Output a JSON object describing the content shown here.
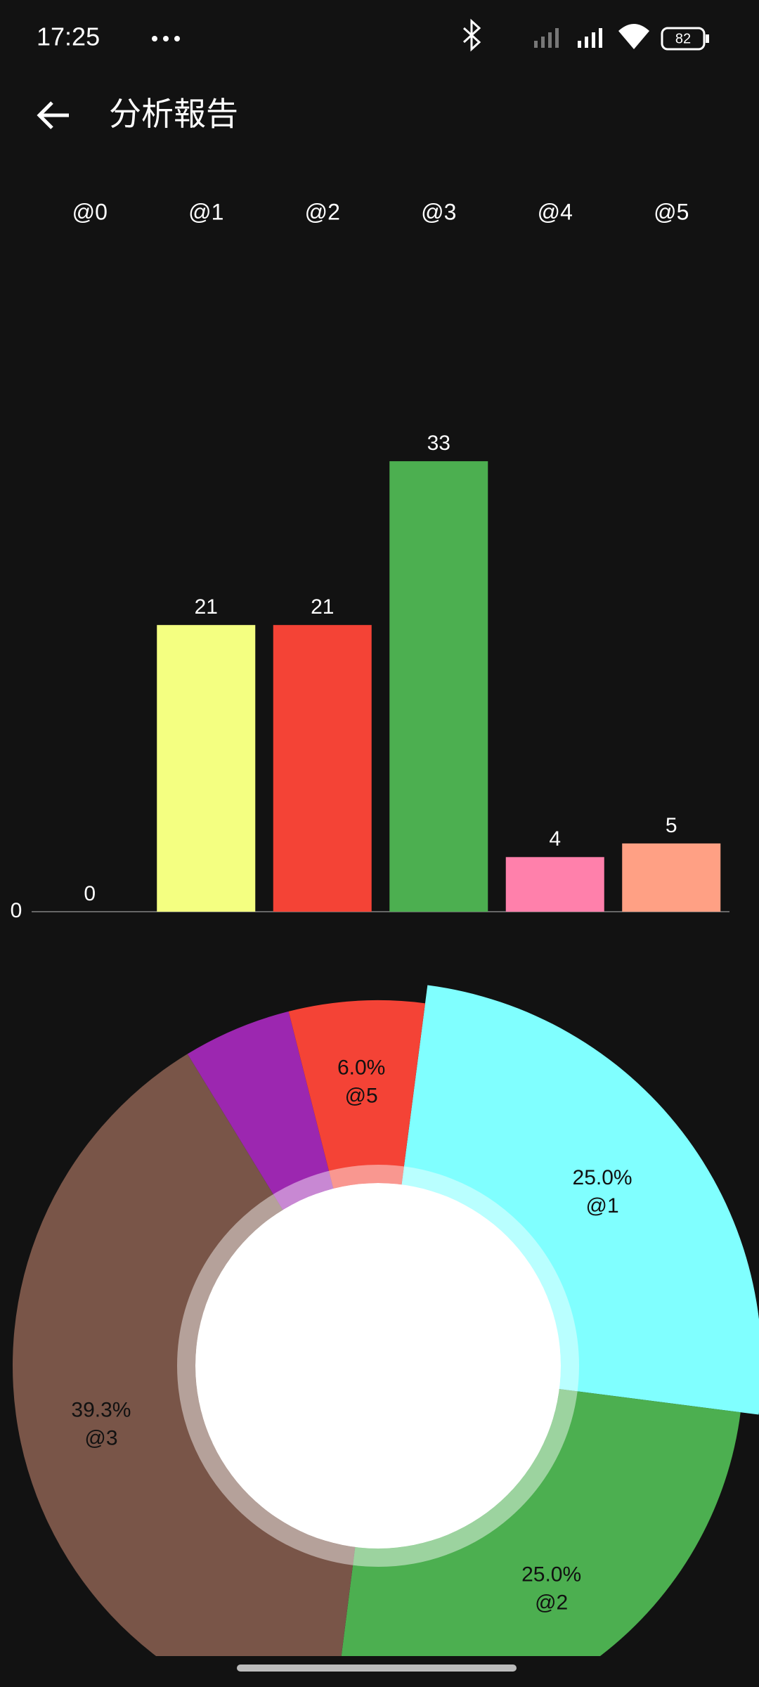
{
  "status_bar": {
    "time": "17:25",
    "battery": "82"
  },
  "app_bar": {
    "title": "分析報告"
  },
  "chart_data": [
    {
      "type": "bar",
      "categories": [
        "@0",
        "@1",
        "@2",
        "@3",
        "@4",
        "@5"
      ],
      "values": [
        0,
        21,
        21,
        33,
        4,
        5
      ],
      "colors": [
        null,
        "#f4ff81",
        "#f44336",
        "#4caf50",
        "#ff80ab",
        "#ffa084"
      ],
      "ylim": [
        0,
        50
      ],
      "yticks": [
        0
      ],
      "grid": false
    },
    {
      "type": "pie",
      "categories": [
        "@1",
        "@2",
        "@3",
        null,
        "@5"
      ],
      "values": [
        25.0,
        25.0,
        39.3,
        4.8,
        6.0
      ],
      "value_labels": [
        "25.0%",
        "25.0%",
        "39.3%",
        null,
        "6.0%"
      ],
      "colors": [
        "#80ffff",
        "#4caf50",
        "#795548",
        "#9c27b0",
        "#f44336"
      ]
    }
  ]
}
